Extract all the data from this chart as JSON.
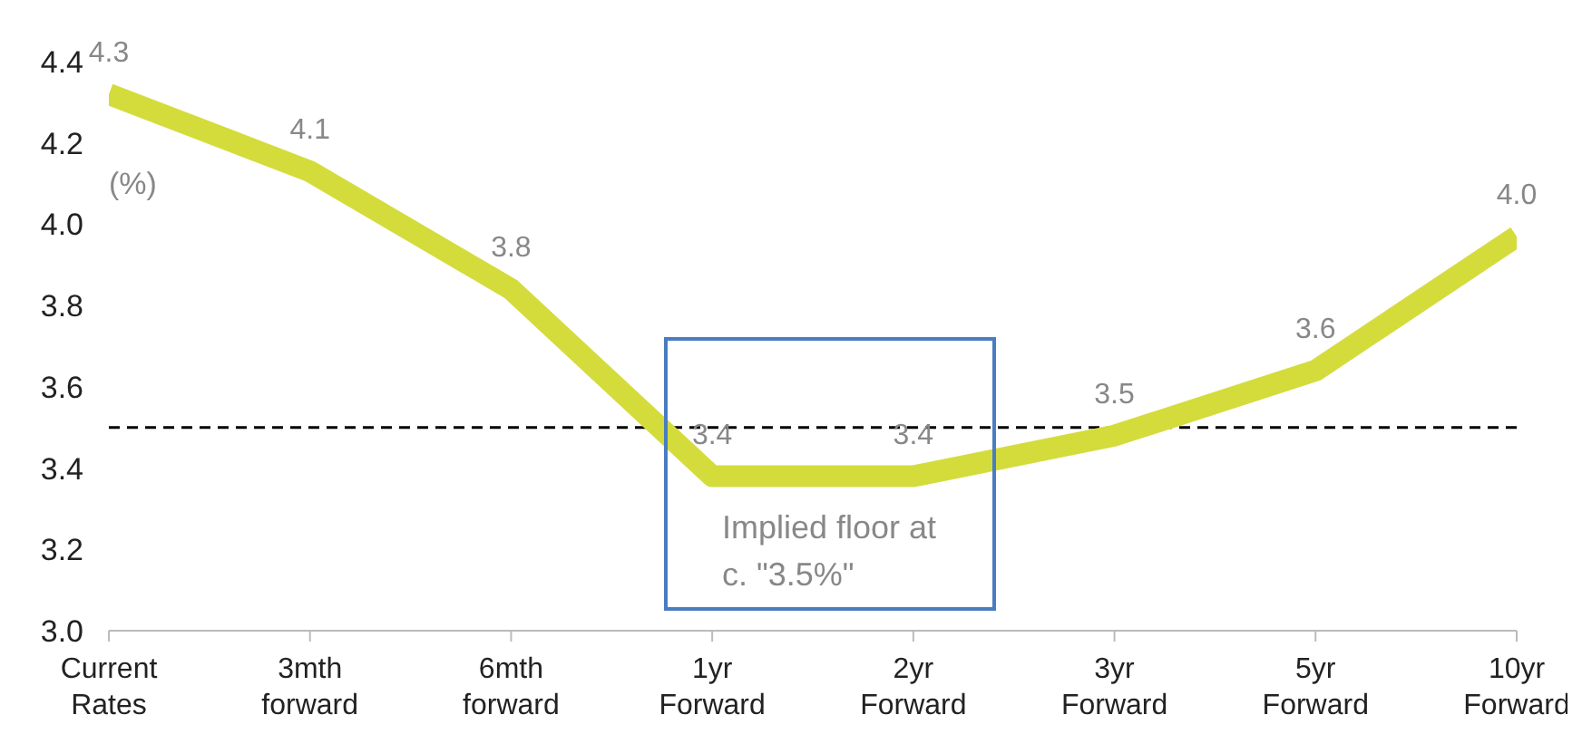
{
  "chart_data": {
    "type": "line",
    "ylabel": "(%)",
    "categories": [
      "Current Rates",
      "3mth forward",
      "6mth forward",
      "1yr Forward",
      "2yr Forward",
      "3yr Forward",
      "5yr Forward",
      "10yr Forward"
    ],
    "series": [
      {
        "color": "#d4dc3c",
        "values": [
          4.32,
          4.13,
          3.84,
          3.38,
          3.38,
          3.48,
          3.64,
          3.97
        ],
        "value_labels": [
          "4.3",
          "4.1",
          "3.8",
          "3.4",
          "3.4",
          "3.5",
          "3.6",
          "4.0"
        ]
      }
    ],
    "ylim": [
      3.0,
      4.4
    ],
    "yticks": [
      {
        "value": 3.0,
        "label": "3.0"
      },
      3.2,
      3.4,
      3.6,
      3.8,
      {
        "value": 4.0,
        "label": "4.0"
      },
      4.2,
      4.4
    ],
    "grid": false,
    "legend": false,
    "marker": "none",
    "line_style": "solid",
    "ref_lines": [
      {
        "axis": "y",
        "value": 3.5,
        "color": "#000000",
        "line_style": "dashed"
      }
    ],
    "annotations": [
      "Implied floor at c. \"3.5%\""
    ]
  }
}
